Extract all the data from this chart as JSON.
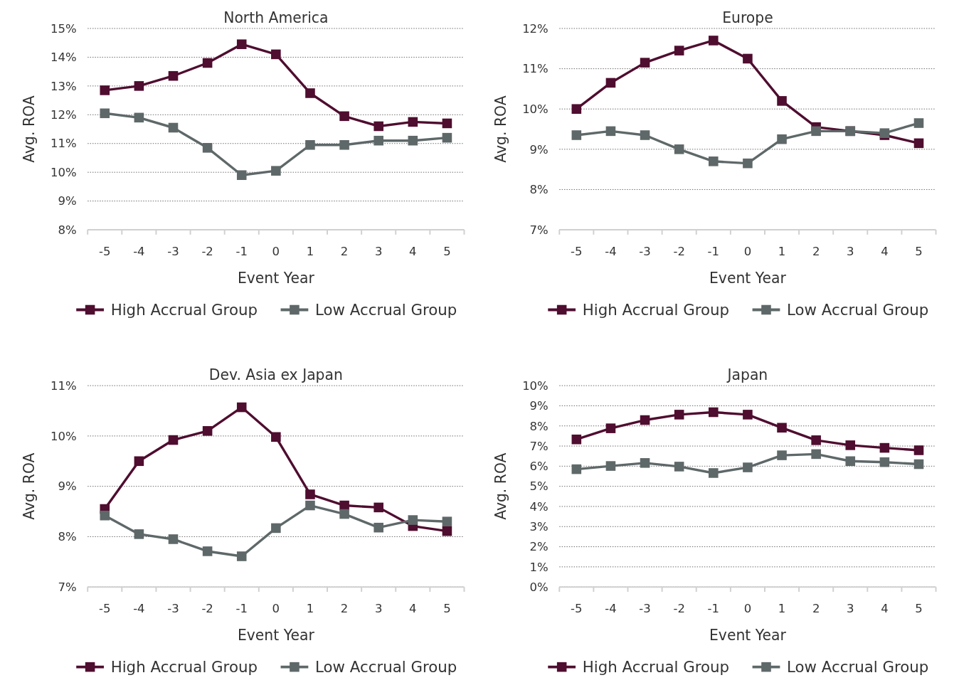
{
  "chart_data": [
    {
      "type": "line",
      "title": "North America",
      "xlabel": "Event Year",
      "ylabel": "Avg. ROA",
      "categories": [
        "-5",
        "-4",
        "-3",
        "-2",
        "-1",
        "0",
        "1",
        "2",
        "3",
        "4",
        "5"
      ],
      "series": [
        {
          "name": "High Accrual Group",
          "color": "#4f0d2f",
          "values": [
            12.85,
            13.0,
            13.35,
            13.8,
            14.45,
            14.1,
            12.75,
            11.95,
            11.6,
            11.75,
            11.7
          ]
        },
        {
          "name": "Low Accrual Group",
          "color": "#5f6869",
          "values": [
            12.05,
            11.9,
            11.55,
            10.85,
            9.9,
            10.05,
            10.95,
            10.95,
            11.1,
            11.1,
            11.2
          ]
        }
      ],
      "ylim": [
        8,
        15
      ],
      "yticks": [
        {
          "value": 8,
          "label": "8%"
        },
        {
          "value": 9,
          "label": "9%"
        },
        {
          "value": 10,
          "label": "10%"
        },
        {
          "value": 11,
          "label": "11%"
        },
        {
          "value": 12,
          "label": "12%"
        },
        {
          "value": 13,
          "label": "13%"
        },
        {
          "value": 14,
          "label": "14%"
        },
        {
          "value": 15,
          "label": "15%"
        }
      ],
      "grid": "y",
      "legend": "bottom",
      "marker": "square",
      "line_style": "solid"
    },
    {
      "type": "line",
      "title": "Europe",
      "xlabel": "Event Year",
      "ylabel": "Avg. ROA",
      "categories": [
        "-5",
        "-4",
        "-3",
        "-2",
        "-1",
        "0",
        "1",
        "2",
        "3",
        "4",
        "5"
      ],
      "series": [
        {
          "name": "High Accrual Group",
          "color": "#4f0d2f",
          "values": [
            10.0,
            10.65,
            11.15,
            11.45,
            11.7,
            11.25,
            10.2,
            9.55,
            9.45,
            9.35,
            9.15
          ]
        },
        {
          "name": "Low Accrual Group",
          "color": "#5f6869",
          "values": [
            9.35,
            9.45,
            9.35,
            9.0,
            8.7,
            8.65,
            9.25,
            9.45,
            9.45,
            9.4,
            9.65
          ]
        }
      ],
      "ylim": [
        7,
        12
      ],
      "yticks": [
        {
          "value": 7,
          "label": "7%"
        },
        {
          "value": 8,
          "label": "8%"
        },
        {
          "value": 9,
          "label": "9%"
        },
        {
          "value": 10,
          "label": "10%"
        },
        {
          "value": 11,
          "label": "11%"
        },
        {
          "value": 12,
          "label": "12%"
        }
      ],
      "grid": "y",
      "legend": "bottom",
      "marker": "square",
      "line_style": "solid"
    },
    {
      "type": "line",
      "title": "Dev. Asia ex Japan",
      "xlabel": "Event Year",
      "ylabel": "Avg. ROA",
      "categories": [
        "-5",
        "-4",
        "-3",
        "-2",
        "-1",
        "0",
        "1",
        "2",
        "3",
        "4",
        "5"
      ],
      "series": [
        {
          "name": "High Accrual Group",
          "color": "#4f0d2f",
          "values": [
            8.55,
            9.5,
            9.92,
            10.1,
            10.57,
            9.98,
            8.84,
            8.62,
            8.58,
            8.21,
            8.11
          ]
        },
        {
          "name": "Low Accrual Group",
          "color": "#5f6869",
          "values": [
            8.42,
            8.05,
            7.95,
            7.71,
            7.61,
            8.17,
            8.62,
            8.45,
            8.18,
            8.33,
            8.3
          ]
        }
      ],
      "ylim": [
        7,
        11
      ],
      "yticks": [
        {
          "value": 7,
          "label": "7%"
        },
        {
          "value": 8,
          "label": "8%"
        },
        {
          "value": 9,
          "label": "9%"
        },
        {
          "value": 10,
          "label": "10%"
        },
        {
          "value": 11,
          "label": "11%"
        }
      ],
      "grid": "y",
      "legend": "bottom",
      "marker": "square",
      "line_style": "solid"
    },
    {
      "type": "line",
      "title": "Japan",
      "xlabel": "Event Year",
      "ylabel": "Avg. ROA",
      "categories": [
        "-5",
        "-4",
        "-3",
        "-2",
        "-1",
        "0",
        "1",
        "2",
        "3",
        "4",
        "5"
      ],
      "series": [
        {
          "name": "High Accrual Group",
          "color": "#4f0d2f",
          "values": [
            7.33,
            7.88,
            8.29,
            8.56,
            8.68,
            8.56,
            7.91,
            7.29,
            7.04,
            6.91,
            6.79
          ]
        },
        {
          "name": "Low Accrual Group",
          "color": "#5f6869",
          "values": [
            5.85,
            6.01,
            6.16,
            5.98,
            5.66,
            5.94,
            6.54,
            6.6,
            6.25,
            6.2,
            6.1
          ]
        }
      ],
      "ylim": [
        0,
        10
      ],
      "yticks": [
        {
          "value": 0,
          "label": "0%"
        },
        {
          "value": 1,
          "label": "1%"
        },
        {
          "value": 2,
          "label": "2%"
        },
        {
          "value": 3,
          "label": "3%"
        },
        {
          "value": 4,
          "label": "4%"
        },
        {
          "value": 5,
          "label": "5%"
        },
        {
          "value": 6,
          "label": "6%"
        },
        {
          "value": 7,
          "label": "7%"
        },
        {
          "value": 8,
          "label": "8%"
        },
        {
          "value": 9,
          "label": "9%"
        },
        {
          "value": 10,
          "label": "10%"
        }
      ],
      "grid": "y",
      "legend": "bottom",
      "marker": "square",
      "line_style": "solid"
    }
  ]
}
